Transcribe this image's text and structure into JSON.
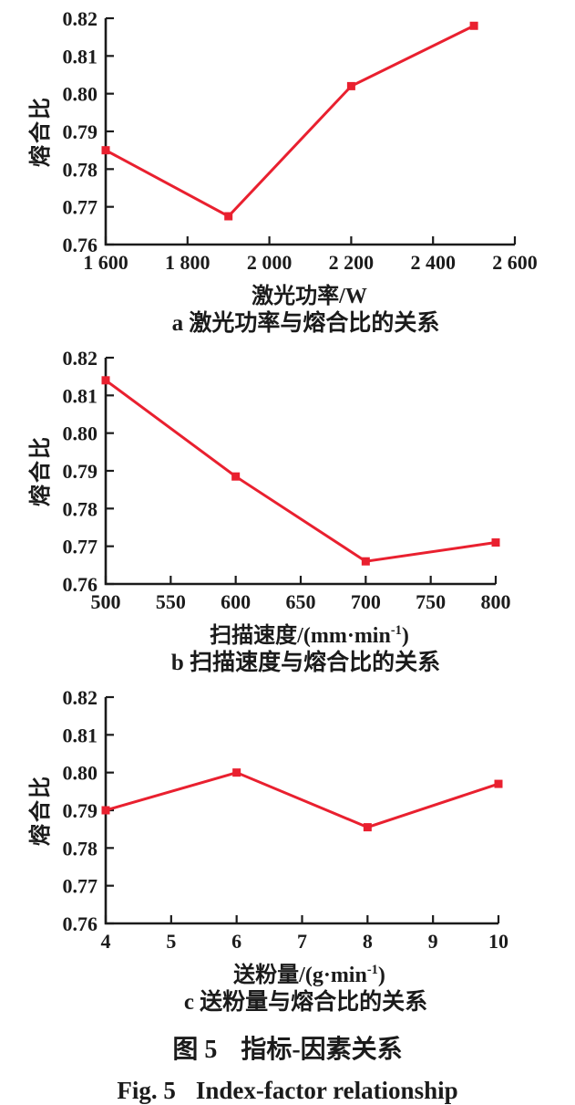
{
  "style": {
    "line_color": "#e9202f",
    "axis_color": "#1b1b1b",
    "text_color": "#1b1b1b"
  },
  "figure": {
    "caption_cn": {
      "label": "图 5",
      "text": "指标-因素关系"
    },
    "caption_en": {
      "label": "Fig. 5",
      "text": "Index-factor relationship"
    }
  },
  "chart_data": [
    {
      "id": "a",
      "type": "line",
      "caption": "a 激光功率与熔合比的关系",
      "ylabel": "熔合比",
      "xlabel": {
        "pre": "激光功率/W",
        "sup": "",
        "post": ""
      },
      "x": [
        1600,
        1900,
        2200,
        2500
      ],
      "y": [
        0.785,
        0.7675,
        0.802,
        0.818
      ],
      "xlim": [
        1600,
        2600
      ],
      "ylim": [
        0.76,
        0.82
      ],
      "x_ticks": [
        1600,
        1800,
        2000,
        2200,
        2400,
        2600
      ],
      "x_tick_labels": [
        "1 600",
        "1 800",
        "2 000",
        "2 200",
        "2 400",
        "2 600"
      ],
      "y_ticks": [
        0.76,
        0.77,
        0.78,
        0.79,
        0.8,
        0.81,
        0.82
      ],
      "y_tick_labels": [
        "0.76",
        "0.77",
        "0.78",
        "0.79",
        "0.80",
        "0.81",
        "0.82"
      ],
      "grid": false,
      "legend": "none",
      "plot_right": 565
    },
    {
      "id": "b",
      "type": "line",
      "caption": "b 扫描速度与熔合比的关系",
      "ylabel": "熔合比",
      "xlabel": {
        "pre": "扫描速度/(mm·min",
        "sup": "-1",
        "post": ")"
      },
      "x": [
        500,
        600,
        700,
        800
      ],
      "y": [
        0.814,
        0.7885,
        0.766,
        0.771
      ],
      "xlim": [
        500,
        800
      ],
      "ylim": [
        0.76,
        0.82
      ],
      "x_ticks": [
        500,
        550,
        600,
        650,
        700,
        750,
        800
      ],
      "x_tick_labels": [
        "500",
        "550",
        "600",
        "650",
        "700",
        "750",
        "800"
      ],
      "y_ticks": [
        0.76,
        0.77,
        0.78,
        0.79,
        0.8,
        0.81,
        0.82
      ],
      "y_tick_labels": [
        "0.76",
        "0.77",
        "0.78",
        "0.79",
        "0.80",
        "0.81",
        "0.82"
      ],
      "grid": false,
      "legend": "none",
      "plot_right": 544
    },
    {
      "id": "c",
      "type": "line",
      "caption": "c 送粉量与熔合比的关系",
      "ylabel": "熔合比",
      "xlabel": {
        "pre": "送粉量/(g·min",
        "sup": "-1",
        "post": ")"
      },
      "x": [
        4,
        6,
        8,
        10
      ],
      "y": [
        0.79,
        0.8,
        0.7855,
        0.797
      ],
      "xlim": [
        4,
        10
      ],
      "ylim": [
        0.76,
        0.82
      ],
      "x_ticks": [
        4,
        5,
        6,
        7,
        8,
        9,
        10
      ],
      "x_tick_labels": [
        "4",
        "5",
        "6",
        "7",
        "8",
        "9",
        "10"
      ],
      "y_ticks": [
        0.76,
        0.77,
        0.78,
        0.79,
        0.8,
        0.81,
        0.82
      ],
      "y_tick_labels": [
        "0.76",
        "0.77",
        "0.78",
        "0.79",
        "0.80",
        "0.81",
        "0.82"
      ],
      "grid": false,
      "legend": "none",
      "plot_right": 547
    }
  ]
}
